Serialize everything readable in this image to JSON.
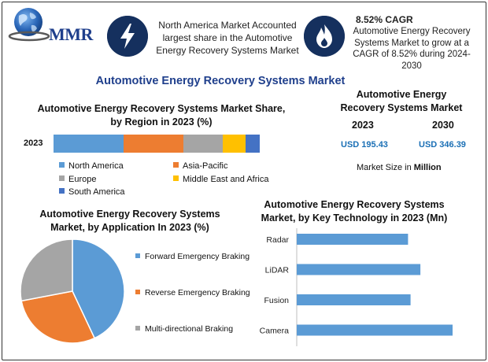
{
  "header": {
    "logo_text": "MMR",
    "highlight_region": "North America Market Accounted largest share in the Automotive Energy Recovery Systems Market",
    "cagr_title": "8.52% CAGR",
    "cagr_text": "Automotive Energy Recovery Systems Market to grow at a CAGR of 8.52% during 2024-2030",
    "main_title": "Automotive Energy Recovery Systems Market"
  },
  "market_size": {
    "title": "Automotive Energy Recovery Systems Market",
    "year_a": "2023",
    "year_b": "2030",
    "value_a": "USD 195.43",
    "value_b": "USD 346.39",
    "note_prefix": "Market Size in",
    "note_unit": "Million"
  },
  "colors": {
    "north_america": "#5b9bd5",
    "asia_pacific": "#ed7d31",
    "europe": "#a5a5a5",
    "middle_east_africa": "#ffc000",
    "south_america": "#4472c4",
    "navy": "#15305e",
    "title_blue": "#1f3f8c"
  },
  "chart_data": [
    {
      "type": "bar",
      "orientation": "horizontal-stacked",
      "title": "Automotive Energy Recovery Systems Market Share, by Region in 2023 (%)",
      "categories": [
        "2023"
      ],
      "series": [
        {
          "name": "North America",
          "values": [
            34
          ]
        },
        {
          "name": "Asia-Pacific",
          "values": [
            29
          ]
        },
        {
          "name": "Europe",
          "values": [
            19
          ]
        },
        {
          "name": "Middle East and Africa",
          "values": [
            11
          ]
        },
        {
          "name": "South America",
          "values": [
            7
          ]
        }
      ],
      "xlim": [
        0,
        100
      ],
      "legend": "bottom"
    },
    {
      "type": "pie",
      "title": "Automotive Energy Recovery Systems Market, by Application In 2023 (%)",
      "labels": [
        "Forward Emergency Braking",
        "Reverse Emergency Braking",
        "Multi-directional Braking"
      ],
      "values": [
        43,
        29,
        28
      ],
      "legend": "right"
    },
    {
      "type": "bar",
      "orientation": "horizontal",
      "title": "Automotive Energy Recovery Systems Market, by Key Technology in 2023 (Mn)",
      "categories": [
        "Radar",
        "LiDAR",
        "Fusion",
        "Camera"
      ],
      "values": [
        45,
        50,
        46,
        63
      ],
      "xlim": [
        0,
        70
      ],
      "grid": false
    }
  ]
}
